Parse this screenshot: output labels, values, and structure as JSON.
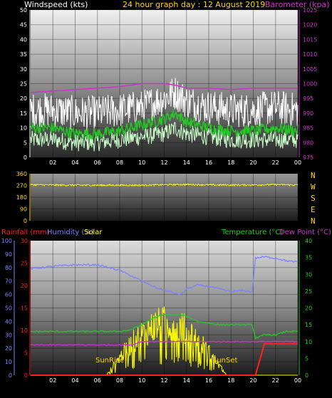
{
  "header": {
    "left_title": "Windspeed (kts)",
    "center_title": "24 hour graph day : 12 August 2019",
    "right_title": "Barometer (kpa)"
  },
  "compass": [
    "N",
    "W",
    "S",
    "E",
    "N"
  ],
  "bottom_labels": {
    "rainfall": "Rainfall (mm)",
    "humidity": "Humidity (%)",
    "solar": "Solar",
    "temperature": "Temperature (°C)",
    "dewpoint": "Dew Point (°C)",
    "sunrise": "SunRise",
    "sunset": "SunSet"
  },
  "colors": {
    "windspeed_title": "#ffffff",
    "center_title": "#ffd700",
    "barometer": "#cc33cc",
    "windspeed_avg": "#22cc22",
    "windspeed_low": "#c8ffc8",
    "gust": "#ffffff",
    "direction": "#ffff00",
    "rainfall": "#ff2020",
    "humidity": "#8080ff",
    "solar": "#ffff00",
    "temperature": "#22cc22",
    "dewpoint": "#cc33cc",
    "sunrise_text": "#ffd700"
  },
  "chart_data": [
    {
      "type": "line",
      "name": "wind-barometer",
      "x_tick_labels": [
        "02",
        "04",
        "06",
        "08",
        "10",
        "12",
        "14",
        "16",
        "18",
        "20",
        "22",
        "00"
      ],
      "left_axis": {
        "label": "Windspeed (kts)",
        "ylim": [
          0,
          50
        ],
        "ticks": [
          "0",
          "5",
          "10",
          "15",
          "20",
          "25",
          "30",
          "35",
          "40",
          "45",
          "50"
        ]
      },
      "right_axis": {
        "label": "Barometer (kpa)",
        "ylim": [
          975,
          1025
        ],
        "ticks": [
          "975",
          "980",
          "985",
          "990",
          "995",
          "1000",
          "1005",
          "1010",
          "1015",
          "1020",
          "1025"
        ]
      },
      "x": [
        0,
        2,
        4,
        6,
        8,
        10,
        12,
        13,
        14,
        16,
        18,
        20,
        22,
        24
      ],
      "series": [
        {
          "key": "gust",
          "values": [
            16,
            16,
            15,
            15,
            16,
            17,
            20,
            22,
            19,
            17,
            16,
            16,
            17,
            16
          ]
        },
        {
          "key": "avg",
          "values": [
            10,
            10,
            8,
            8,
            9,
            11,
            13,
            15,
            12,
            10,
            9,
            9,
            10,
            9
          ]
        },
        {
          "key": "low",
          "values": [
            6,
            6,
            5,
            5,
            6,
            7,
            8,
            10,
            8,
            7,
            6,
            6,
            6,
            6
          ]
        },
        {
          "key": "barometer",
          "values": [
            997,
            997.5,
            998,
            998.5,
            999,
            1000,
            1000,
            999.5,
            998.5,
            998.5,
            998,
            998.5,
            998.5,
            998.5
          ]
        }
      ]
    },
    {
      "type": "line",
      "name": "wind-direction",
      "ylim": [
        0,
        360
      ],
      "ticks": [
        "0",
        "90",
        "180",
        "270",
        "360"
      ],
      "x": [
        0,
        2,
        4,
        6,
        8,
        10,
        12,
        14,
        16,
        18,
        20,
        22,
        24
      ],
      "series": [
        {
          "key": "direction",
          "values": [
            275,
            273,
            272,
            272,
            272,
            272,
            275,
            277,
            274,
            273,
            274,
            276,
            273
          ]
        }
      ]
    },
    {
      "type": "line",
      "name": "rain-humidity-solar-temp",
      "x_tick_labels": [
        "02",
        "04",
        "06",
        "08",
        "10",
        "12",
        "14",
        "16",
        "18",
        "20",
        "22",
        "00"
      ],
      "humidity_axis": {
        "ylim": [
          0,
          100
        ],
        "ticks": [
          "0",
          "10",
          "20",
          "30",
          "40",
          "50",
          "60",
          "70",
          "80",
          "90",
          "100"
        ]
      },
      "rain_axis": {
        "ylim": [
          0,
          30
        ],
        "ticks": [
          "0",
          "5",
          "10",
          "15",
          "20",
          "25",
          "30"
        ]
      },
      "temp_axis": {
        "ylim": [
          0,
          40
        ],
        "ticks": [
          "0",
          "5",
          "10",
          "15",
          "20",
          "25",
          "30",
          "35",
          "40"
        ]
      },
      "x": [
        0,
        2,
        4,
        6,
        8,
        9,
        10,
        11,
        12,
        13,
        13.5,
        14,
        15,
        16,
        17,
        18,
        19,
        19.9,
        20.2,
        21,
        22,
        23,
        24
      ],
      "series": [
        {
          "key": "humidity",
          "values": [
            79,
            81,
            82,
            82,
            78,
            74,
            70,
            66,
            63,
            61,
            60,
            64,
            67,
            66,
            64,
            62,
            63,
            62,
            87,
            88,
            87,
            85,
            84
          ]
        },
        {
          "key": "temperature",
          "values": [
            13,
            13,
            13,
            13,
            13,
            13.5,
            15,
            17,
            18,
            18,
            18,
            17.5,
            16,
            15.5,
            15,
            15,
            15,
            15,
            11,
            12,
            12,
            13,
            13
          ]
        },
        {
          "key": "dewpoint",
          "values": [
            9,
            9,
            9,
            9,
            9,
            9,
            10,
            10,
            10,
            10,
            10,
            10,
            10,
            10,
            10,
            10,
            10,
            10,
            10,
            10,
            10,
            10,
            10
          ]
        },
        {
          "key": "rainfall",
          "values": [
            0,
            0,
            0,
            0,
            0,
            0,
            0,
            0,
            0,
            0,
            0,
            0,
            0,
            0,
            0,
            0,
            0,
            0,
            0,
            7,
            7,
            7,
            7
          ]
        }
      ]
    }
  ]
}
